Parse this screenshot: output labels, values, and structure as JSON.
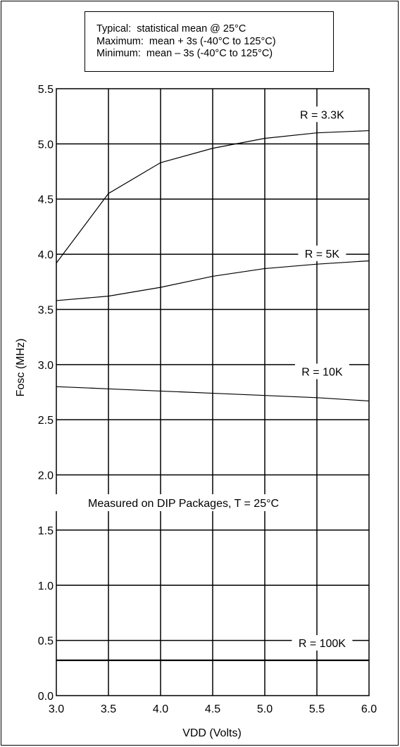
{
  "legend": {
    "lines": [
      "Typical:  statistical mean @ 25°C",
      "Maximum:  mean + 3s (-40°C to 125°C)",
      "Minimum:  mean – 3s (-40°C to 125°C)"
    ]
  },
  "chart_data": {
    "type": "line",
    "xlabel": "VDD (Volts)",
    "ylabel": "Fosc (MHz)",
    "xlim": [
      3.0,
      6.0
    ],
    "ylim": [
      0.0,
      5.5
    ],
    "xticks": [
      "3.0",
      "3.5",
      "4.0",
      "4.5",
      "5.0",
      "5.5",
      "6.0"
    ],
    "yticks": [
      "0.0",
      "0.5",
      "1.0",
      "1.5",
      "2.0",
      "2.5",
      "3.0",
      "3.5",
      "4.0",
      "4.5",
      "5.0",
      "5.5"
    ],
    "grid": true,
    "annotation": "Measured on DIP Packages, T = 25°C",
    "series": [
      {
        "name": "R = 3.3K",
        "x": [
          3.0,
          3.5,
          4.0,
          4.5,
          5.0,
          5.5,
          6.0
        ],
        "y": [
          3.92,
          4.55,
          4.83,
          4.96,
          5.05,
          5.1,
          5.12
        ]
      },
      {
        "name": "R = 5K",
        "x": [
          3.0,
          3.5,
          4.0,
          4.5,
          5.0,
          5.5,
          6.0
        ],
        "y": [
          3.58,
          3.62,
          3.7,
          3.8,
          3.87,
          3.91,
          3.94
        ]
      },
      {
        "name": "R = 10K",
        "x": [
          3.0,
          3.5,
          4.0,
          4.5,
          5.0,
          5.5,
          6.0
        ],
        "y": [
          2.8,
          2.78,
          2.76,
          2.74,
          2.72,
          2.7,
          2.67
        ]
      },
      {
        "name": "R = 100K",
        "x": [
          3.0,
          3.5,
          4.0,
          4.5,
          5.0,
          5.5,
          6.0
        ],
        "y": [
          0.32,
          0.32,
          0.32,
          0.32,
          0.32,
          0.32,
          0.32
        ]
      }
    ]
  }
}
